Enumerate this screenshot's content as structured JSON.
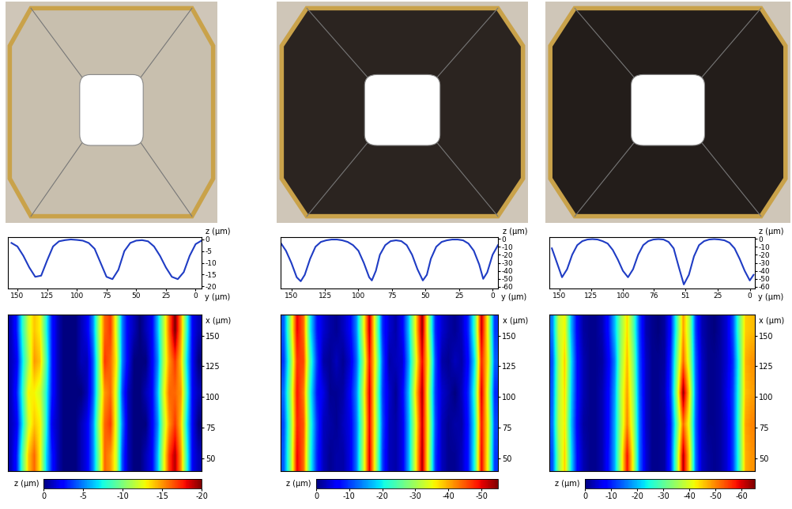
{
  "chart_data": [
    {
      "type": "line",
      "color": "#1f3cc4",
      "xlabel": "y (µm)",
      "ylabel": "z (µm)",
      "x": [
        155,
        150,
        145,
        140,
        135,
        130,
        125,
        120,
        115,
        110,
        105,
        100,
        95,
        90,
        85,
        80,
        75,
        70,
        65,
        60,
        55,
        50,
        45,
        40,
        35,
        30,
        25,
        20,
        15,
        10,
        5,
        0,
        -5
      ],
      "values": [
        -1.5,
        -3,
        -7,
        -12,
        -16,
        -15.5,
        -9,
        -3,
        -0.8,
        -0.3,
        0,
        -0.2,
        -0.5,
        -1.5,
        -4,
        -10,
        -16,
        -17,
        -13,
        -5,
        -1.5,
        -0.5,
        -0.3,
        -0.8,
        -3,
        -7,
        -12,
        -16,
        -17,
        -14,
        -7,
        -2,
        -0.5
      ],
      "xlim": [
        158,
        -5
      ],
      "ylim": [
        -21,
        1
      ],
      "xticks": [
        150,
        125,
        100,
        75,
        50,
        25,
        0
      ],
      "yticks": [
        0,
        -5,
        -10,
        -15,
        -20
      ]
    },
    {
      "type": "line",
      "color": "#1f3cc4",
      "xlabel": "y (µm)",
      "ylabel": "z (µm)",
      "x": [
        158,
        154,
        150,
        146,
        143,
        140,
        136,
        132,
        128,
        124,
        120,
        116,
        112,
        108,
        104,
        100,
        96,
        92,
        90,
        87,
        84,
        80,
        76,
        72,
        68,
        64,
        60,
        56,
        52,
        49,
        46,
        42,
        38,
        34,
        30,
        26,
        22,
        18,
        14,
        10,
        7,
        4,
        0,
        -4
      ],
      "values": [
        -5,
        -15,
        -30,
        -48,
        -53,
        -45,
        -25,
        -10,
        -4,
        -2,
        -1,
        -1,
        -2,
        -4,
        -8,
        -15,
        -30,
        -48,
        -52,
        -40,
        -20,
        -8,
        -3,
        -2,
        -3,
        -8,
        -20,
        -38,
        -52,
        -45,
        -25,
        -10,
        -4,
        -2,
        -1,
        -1,
        -2,
        -6,
        -15,
        -32,
        -50,
        -42,
        -20,
        -8
      ],
      "xlim": [
        158,
        -4
      ],
      "ylim": [
        -62,
        2
      ],
      "xticks": [
        150,
        125,
        100,
        75,
        50,
        25,
        0
      ],
      "yticks": [
        0,
        -10,
        -20,
        -30,
        -40,
        -50,
        -60
      ]
    },
    {
      "type": "line",
      "color": "#1f3cc4",
      "xlabel": "y (µm)",
      "ylabel": "z (µm)",
      "x": [
        156,
        152,
        148,
        144,
        140,
        136,
        132,
        128,
        124,
        120,
        116,
        112,
        108,
        104,
        100,
        96,
        92,
        88,
        84,
        80,
        76,
        72,
        68,
        64,
        60,
        56,
        52,
        48,
        44,
        40,
        36,
        32,
        28,
        24,
        20,
        16,
        12,
        8,
        4,
        0,
        -3
      ],
      "values": [
        -12,
        -30,
        -48,
        -38,
        -20,
        -8,
        -3,
        -1,
        -0.5,
        -1,
        -3,
        -6,
        -14,
        -26,
        -40,
        -48,
        -38,
        -20,
        -8,
        -3,
        -1,
        -0.5,
        -1,
        -4,
        -12,
        -35,
        -57,
        -45,
        -22,
        -8,
        -3,
        -1,
        -0.5,
        -1,
        -2,
        -5,
        -12,
        -25,
        -40,
        -52,
        -45
      ],
      "xlim": [
        158,
        -4
      ],
      "ylim": [
        -62,
        2
      ],
      "xticks": [
        150,
        125,
        100,
        76,
        51,
        25,
        0
      ],
      "yticks": [
        0,
        -10,
        -20,
        -30,
        -40,
        -50,
        -60
      ]
    },
    {
      "type": "heatmap",
      "ylabel": "x (µm)",
      "colorbar_label": "z (µm)",
      "tick_labels": "y",
      "xlim": [
        158,
        -5
      ],
      "ylim": [
        40,
        167
      ],
      "yticks": [
        150,
        125,
        100,
        75,
        50
      ],
      "cells": [
        [
          -1,
          -3,
          -8,
          -12,
          -14,
          -13,
          -8,
          -3,
          -1,
          0,
          0,
          0,
          -1,
          -2,
          -5,
          -11,
          -16,
          -17,
          -12,
          -5,
          -2,
          -1,
          0,
          -1,
          -2,
          -6,
          -11,
          -16,
          -20,
          -15,
          -8,
          -2,
          -1
        ],
        [
          -1,
          -2,
          -7,
          -11,
          -15,
          -14,
          -9,
          -3,
          -1,
          0,
          0,
          0,
          -1,
          -1,
          -4,
          -10,
          -17,
          -16,
          -13,
          -5,
          -2,
          0,
          0,
          0,
          -2,
          -5,
          -11,
          -15,
          -17,
          -14,
          -7,
          -2,
          0
        ],
        [
          -1,
          -3,
          -8,
          -13,
          -13,
          -12,
          -8,
          -3,
          -1,
          0,
          0,
          0,
          0,
          -1,
          -4,
          -10,
          -15,
          -16,
          -12,
          -4,
          -1,
          0,
          0,
          -1,
          -2,
          -6,
          -12,
          -16,
          -16,
          -15,
          -8,
          -2,
          -1
        ],
        [
          -1,
          -2,
          -7,
          -12,
          -14,
          -13,
          -8,
          -2,
          -1,
          0,
          0,
          0,
          -1,
          -2,
          -5,
          -11,
          -16,
          -17,
          -12,
          -5,
          -1,
          0,
          0,
          0,
          -2,
          -5,
          -11,
          -15,
          -17,
          -14,
          -7,
          -2,
          0
        ],
        [
          -1,
          -3,
          -9,
          -14,
          -16,
          -13,
          -7,
          -3,
          -1,
          0,
          0,
          0,
          -1,
          -2,
          -5,
          -10,
          -16,
          -15,
          -12,
          -4,
          -1,
          0,
          0,
          -1,
          -2,
          -6,
          -12,
          -17,
          -19,
          -15,
          -8,
          -2,
          -1
        ]
      ],
      "colorbar_range": [
        -20,
        0
      ],
      "colorbar_ticks": [
        0,
        -5,
        -10,
        -15,
        -20
      ]
    },
    {
      "type": "heatmap",
      "ylabel": "x (µm)",
      "colorbar_label": "z (µm)",
      "tick_labels": "y",
      "xlim": [
        158,
        -4
      ],
      "ylim": [
        40,
        167
      ],
      "yticks": [
        150,
        125,
        100,
        75,
        50
      ],
      "cells": [
        [
          -12,
          -30,
          -50,
          -44,
          -20,
          -8,
          -4,
          -2,
          -1,
          -3,
          -6,
          -14,
          -32,
          -52,
          -30,
          -9,
          -4,
          -2,
          -6,
          -18,
          -36,
          -54,
          -30,
          -9,
          -4,
          -2,
          -1,
          -3,
          -9,
          -24,
          -52,
          -34,
          -10
        ],
        [
          -10,
          -26,
          -47,
          -46,
          -24,
          -10,
          -2,
          -1,
          -3,
          -1,
          -4,
          -12,
          -28,
          -49,
          -33,
          -11,
          -2,
          -3,
          -4,
          -16,
          -33,
          -50,
          -34,
          -11,
          -2,
          -1,
          -3,
          -2,
          -7,
          -20,
          -48,
          -36,
          -12
        ],
        [
          -13,
          -29,
          -49,
          -43,
          -21,
          -8,
          -5,
          -1,
          -1,
          -2,
          -6,
          -14,
          -31,
          -51,
          -31,
          -10,
          -4,
          -1,
          -6,
          -18,
          -37,
          -53,
          -31,
          -10,
          -4,
          -2,
          0,
          -3,
          -9,
          -23,
          -51,
          -33,
          -9
        ],
        [
          -11,
          -27,
          -48,
          -45,
          -23,
          -10,
          -3,
          -2,
          -1,
          -3,
          -5,
          -13,
          -29,
          -50,
          -32,
          -11,
          -3,
          -2,
          -5,
          -17,
          -34,
          -52,
          -33,
          -11,
          -3,
          -1,
          -2,
          -2,
          -8,
          -21,
          -49,
          -35,
          -11
        ],
        [
          -12,
          -28,
          -50,
          -44,
          -22,
          -9,
          -3,
          -1,
          -2,
          -2,
          -5,
          -13,
          -30,
          -51,
          -31,
          -10,
          -3,
          -2,
          -5,
          -17,
          -35,
          -53,
          -32,
          -10,
          -3,
          -1,
          -1,
          -3,
          -8,
          -22,
          -50,
          -34,
          -10
        ]
      ],
      "colorbar_range": [
        -55,
        0
      ],
      "colorbar_ticks": [
        0,
        -10,
        -20,
        -30,
        -40,
        -50
      ]
    },
    {
      "type": "heatmap",
      "ylabel": "x (µm)",
      "colorbar_label": "z (µm)",
      "tick_labels": "y",
      "xlim": [
        158,
        -4
      ],
      "ylim": [
        40,
        167
      ],
      "yticks": [
        150,
        125,
        100,
        75,
        50
      ],
      "cells": [
        [
          -16,
          -38,
          -42,
          -20,
          -7,
          -2,
          -1,
          -1,
          -3,
          -9,
          -20,
          -34,
          -44,
          -30,
          -12,
          -3,
          -1,
          0,
          -2,
          -9,
          -28,
          -48,
          -36,
          -12,
          -3,
          -1,
          0,
          -2,
          -5,
          -13,
          -30,
          -45,
          -46
        ],
        [
          -13,
          -35,
          -45,
          -23,
          -8,
          -3,
          -1,
          -1,
          -2,
          -7,
          -16,
          -35,
          -46,
          -33,
          -13,
          -4,
          -1,
          -1,
          -2,
          -11,
          -32,
          -52,
          -38,
          -14,
          -4,
          -1,
          -1,
          -2,
          -5,
          -11,
          -27,
          -47,
          -49
        ],
        [
          -14,
          -36,
          -44,
          -22,
          -8,
          -3,
          -1,
          -1,
          -3,
          -8,
          -18,
          -37,
          -48,
          -35,
          -14,
          -4,
          -1,
          -1,
          -3,
          -12,
          -36,
          -64,
          -44,
          -15,
          -4,
          -1,
          -1,
          -2,
          -6,
          -12,
          -28,
          -46,
          -48
        ],
        [
          -15,
          -37,
          -43,
          -21,
          -7,
          -2,
          -1,
          -1,
          -3,
          -8,
          -19,
          -36,
          -50,
          -37,
          -15,
          -4,
          -1,
          -1,
          -2,
          -10,
          -30,
          -52,
          -40,
          -14,
          -4,
          -1,
          -1,
          -2,
          -5,
          -12,
          -29,
          -48,
          -50
        ],
        [
          -13,
          -34,
          -45,
          -23,
          -8,
          -3,
          -1,
          -1,
          -3,
          -9,
          -19,
          -38,
          -58,
          -40,
          -15,
          -5,
          -1,
          -1,
          -2,
          -11,
          -34,
          -62,
          -44,
          -15,
          -4,
          -2,
          -1,
          -2,
          -5,
          -12,
          -28,
          -47,
          -49
        ]
      ],
      "colorbar_range": [
        -65,
        0
      ],
      "colorbar_ticks": [
        0,
        -10,
        -20,
        -30,
        -40,
        -50,
        -60
      ]
    }
  ]
}
